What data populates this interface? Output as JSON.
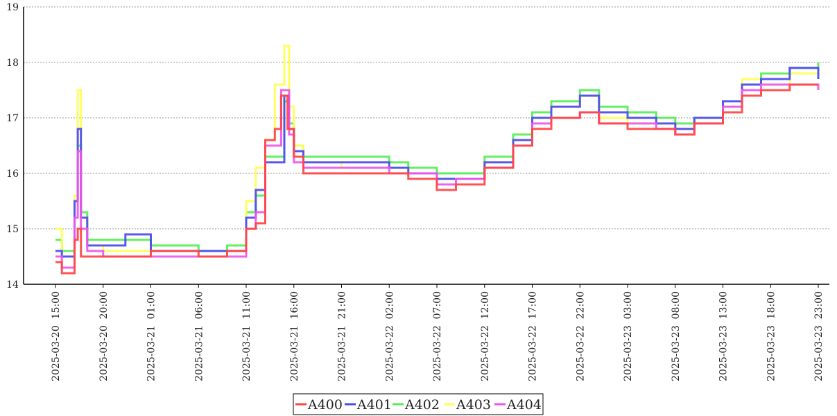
{
  "chart_data": {
    "type": "line",
    "title": "",
    "xlabel": "",
    "ylabel": "",
    "ylim": [
      14,
      19
    ],
    "yticks": [
      "14",
      "15",
      "16",
      "17",
      "18",
      "19"
    ],
    "xlim_hours_label_start": "2025-03-20 15:00",
    "xticks": [
      "2025-03-20  15:00",
      "2025-03-20  20:00",
      "2025-03-21  01:00",
      "2025-03-21  06:00",
      "2025-03-21  11:00",
      "2025-03-21  16:00",
      "2025-03-21  21:00",
      "2025-03-22  02:00",
      "2025-03-22  07:00",
      "2025-03-22  12:00",
      "2025-03-22  17:00",
      "2025-03-22  22:00",
      "2025-03-23  03:00",
      "2025-03-23  08:00",
      "2025-03-23  13:00",
      "2025-03-23  18:00",
      "2025-03-23  23:00"
    ],
    "grid": "horizontal-dotted",
    "legend_position": "bottom-center",
    "series": [
      {
        "name": "A400",
        "color": "#ff4444",
        "x": [
          "2025-03-20 15:00",
          "2025-03-20 15:40",
          "2025-03-20 17:00",
          "2025-03-20 17:20",
          "2025-03-20 17:40",
          "2025-03-20 20:00",
          "2025-03-21 01:00",
          "2025-03-21 06:00",
          "2025-03-21 09:00",
          "2025-03-21 11:00",
          "2025-03-21 12:00",
          "2025-03-21 13:00",
          "2025-03-21 14:00",
          "2025-03-21 14:40",
          "2025-03-21 15:20",
          "2025-03-21 16:00",
          "2025-03-21 17:00",
          "2025-03-21 21:00",
          "2025-03-22 02:00",
          "2025-03-22 04:00",
          "2025-03-22 07:00",
          "2025-03-22 09:00",
          "2025-03-22 12:00",
          "2025-03-22 15:00",
          "2025-03-22 17:00",
          "2025-03-22 19:00",
          "2025-03-22 22:00",
          "2025-03-23 00:00",
          "2025-03-23 03:00",
          "2025-03-23 06:00",
          "2025-03-23 08:00",
          "2025-03-23 10:00",
          "2025-03-23 13:00",
          "2025-03-23 15:00",
          "2025-03-23 17:00",
          "2025-03-23 20:00",
          "2025-03-23 23:00"
        ],
        "values": [
          14.4,
          14.2,
          14.8,
          15.0,
          14.5,
          14.5,
          14.6,
          14.5,
          14.6,
          15.0,
          15.1,
          16.6,
          16.8,
          17.4,
          16.8,
          16.3,
          16.0,
          16.0,
          16.0,
          15.9,
          15.7,
          15.8,
          16.1,
          16.5,
          16.8,
          17.0,
          17.1,
          16.9,
          16.8,
          16.8,
          16.7,
          16.9,
          17.1,
          17.4,
          17.5,
          17.6,
          17.6
        ]
      },
      {
        "name": "A401",
        "color": "#4a4aee",
        "x": [
          "2025-03-20 15:00",
          "2025-03-20 15:40",
          "2025-03-20 17:00",
          "2025-03-20 17:20",
          "2025-03-20 17:40",
          "2025-03-20 18:20",
          "2025-03-20 20:00",
          "2025-03-20 22:20",
          "2025-03-21 01:00",
          "2025-03-21 06:00",
          "2025-03-21 09:00",
          "2025-03-21 11:00",
          "2025-03-21 12:00",
          "2025-03-21 13:00",
          "2025-03-21 15:00",
          "2025-03-21 15:30",
          "2025-03-21 16:00",
          "2025-03-21 17:00",
          "2025-03-21 21:00",
          "2025-03-22 02:00",
          "2025-03-22 04:00",
          "2025-03-22 07:00",
          "2025-03-22 09:00",
          "2025-03-22 12:00",
          "2025-03-22 15:00",
          "2025-03-22 17:00",
          "2025-03-22 19:00",
          "2025-03-22 22:00",
          "2025-03-23 00:00",
          "2025-03-23 03:00",
          "2025-03-23 06:00",
          "2025-03-23 08:00",
          "2025-03-23 10:00",
          "2025-03-23 13:00",
          "2025-03-23 15:00",
          "2025-03-23 17:00",
          "2025-03-23 20:00",
          "2025-03-23 23:00"
        ],
        "values": [
          14.6,
          14.5,
          15.5,
          16.8,
          15.2,
          14.7,
          14.7,
          14.9,
          14.6,
          14.6,
          14.6,
          15.2,
          15.7,
          16.2,
          17.4,
          16.8,
          16.4,
          16.2,
          16.2,
          16.1,
          16.0,
          15.9,
          15.9,
          16.2,
          16.6,
          17.0,
          17.2,
          17.4,
          17.1,
          17.0,
          16.9,
          16.8,
          17.0,
          17.3,
          17.6,
          17.7,
          17.9,
          17.7
        ]
      },
      {
        "name": "A402",
        "color": "#55ee55",
        "x": [
          "2025-03-20 15:00",
          "2025-03-20 15:40",
          "2025-03-20 17:00",
          "2025-03-20 17:20",
          "2025-03-20 17:40",
          "2025-03-20 18:20",
          "2025-03-20 20:00",
          "2025-03-21 01:00",
          "2025-03-21 06:00",
          "2025-03-21 09:00",
          "2025-03-21 11:00",
          "2025-03-21 12:00",
          "2025-03-21 13:00",
          "2025-03-21 15:00",
          "2025-03-21 15:30",
          "2025-03-21 16:00",
          "2025-03-21 17:00",
          "2025-03-21 21:00",
          "2025-03-22 02:00",
          "2025-03-22 04:00",
          "2025-03-22 07:00",
          "2025-03-22 09:00",
          "2025-03-22 12:00",
          "2025-03-22 15:00",
          "2025-03-22 17:00",
          "2025-03-22 19:00",
          "2025-03-22 22:00",
          "2025-03-23 00:00",
          "2025-03-23 03:00",
          "2025-03-23 06:00",
          "2025-03-23 08:00",
          "2025-03-23 10:00",
          "2025-03-23 13:00",
          "2025-03-23 15:00",
          "2025-03-23 17:00",
          "2025-03-23 20:00",
          "2025-03-23 23:00"
        ],
        "values": [
          14.8,
          14.6,
          15.5,
          16.5,
          15.3,
          14.8,
          14.8,
          14.7,
          14.6,
          14.7,
          15.3,
          15.6,
          16.3,
          17.3,
          16.9,
          16.5,
          16.3,
          16.3,
          16.2,
          16.1,
          16.0,
          16.0,
          16.3,
          16.7,
          17.1,
          17.3,
          17.5,
          17.2,
          17.1,
          17.0,
          16.9,
          17.0,
          17.2,
          17.6,
          17.8,
          17.9,
          18.0
        ]
      },
      {
        "name": "A403",
        "color": "#ffff55",
        "x": [
          "2025-03-20 15:00",
          "2025-03-20 15:40",
          "2025-03-20 17:00",
          "2025-03-20 17:20",
          "2025-03-20 17:40",
          "2025-03-20 18:20",
          "2025-03-20 20:00",
          "2025-03-21 01:00",
          "2025-03-21 06:00",
          "2025-03-21 09:00",
          "2025-03-21 11:00",
          "2025-03-21 12:00",
          "2025-03-21 13:00",
          "2025-03-21 14:00",
          "2025-03-21 15:00",
          "2025-03-21 15:30",
          "2025-03-21 16:00",
          "2025-03-21 17:00",
          "2025-03-21 21:00",
          "2025-03-22 02:00",
          "2025-03-22 04:00",
          "2025-03-22 07:00",
          "2025-03-22 09:00",
          "2025-03-22 12:00",
          "2025-03-22 15:00",
          "2025-03-22 17:00",
          "2025-03-22 19:00",
          "2025-03-22 22:00",
          "2025-03-23 00:00",
          "2025-03-23 03:00",
          "2025-03-23 06:00",
          "2025-03-23 08:00",
          "2025-03-23 10:00",
          "2025-03-23 13:00",
          "2025-03-23 15:00",
          "2025-03-23 17:00",
          "2025-03-23 20:00",
          "2025-03-23 23:00"
        ],
        "values": [
          15.0,
          14.5,
          15.6,
          17.5,
          15.2,
          14.7,
          14.6,
          14.6,
          14.5,
          14.6,
          15.5,
          16.1,
          16.6,
          17.6,
          18.3,
          17.2,
          16.5,
          16.2,
          16.1,
          16.1,
          16.0,
          15.9,
          15.9,
          16.2,
          16.6,
          17.0,
          17.2,
          17.4,
          17.0,
          16.9,
          16.9,
          16.8,
          17.0,
          17.2,
          17.7,
          17.6,
          17.8,
          17.7
        ]
      },
      {
        "name": "A404",
        "color": "#ee55ee",
        "x": [
          "2025-03-20 15:00",
          "2025-03-20 15:40",
          "2025-03-20 17:00",
          "2025-03-20 17:20",
          "2025-03-20 17:40",
          "2025-03-20 18:20",
          "2025-03-20 20:00",
          "2025-03-21 01:00",
          "2025-03-21 06:00",
          "2025-03-21 09:00",
          "2025-03-21 11:00",
          "2025-03-21 12:00",
          "2025-03-21 13:00",
          "2025-03-21 14:40",
          "2025-03-21 15:30",
          "2025-03-21 16:00",
          "2025-03-21 17:00",
          "2025-03-21 21:00",
          "2025-03-22 02:00",
          "2025-03-22 04:00",
          "2025-03-22 07:00",
          "2025-03-22 09:00",
          "2025-03-22 12:00",
          "2025-03-22 15:00",
          "2025-03-22 17:00",
          "2025-03-22 19:00",
          "2025-03-22 22:00",
          "2025-03-23 00:00",
          "2025-03-23 03:00",
          "2025-03-23 06:00",
          "2025-03-23 08:00",
          "2025-03-23 10:00",
          "2025-03-23 13:00",
          "2025-03-23 15:00",
          "2025-03-23 17:00",
          "2025-03-23 20:00",
          "2025-03-23 23:00"
        ],
        "values": [
          14.5,
          14.3,
          15.2,
          16.4,
          15.0,
          14.6,
          14.5,
          14.5,
          14.5,
          14.5,
          15.0,
          15.3,
          16.5,
          17.5,
          16.7,
          16.2,
          16.1,
          16.1,
          16.0,
          16.0,
          15.8,
          15.9,
          16.1,
          16.5,
          16.9,
          17.0,
          17.1,
          16.9,
          16.9,
          16.8,
          16.7,
          16.9,
          17.2,
          17.5,
          17.6,
          17.6,
          17.5
        ]
      }
    ]
  }
}
